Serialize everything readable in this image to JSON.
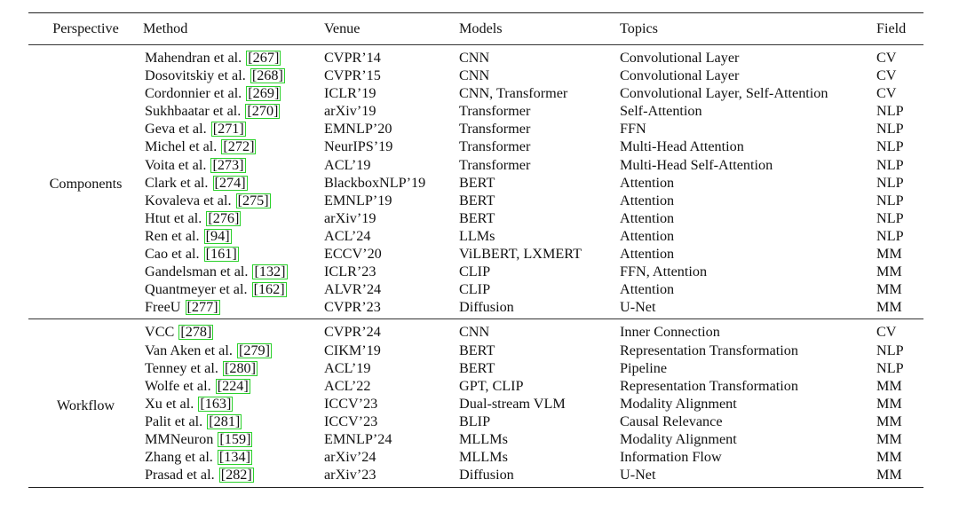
{
  "table": {
    "headers": {
      "perspective": "Perspective",
      "method": "Method",
      "venue": "Venue",
      "models": "Models",
      "topics": "Topics",
      "field": "Field"
    },
    "groups": [
      {
        "perspective": "Components",
        "rows": [
          {
            "method": "Mahendran et al.",
            "ref": "267",
            "venue": "CVPR’14",
            "models": "CNN",
            "topics": "Convolutional Layer",
            "field": "CV"
          },
          {
            "method": "Dosovitskiy et al.",
            "ref": "268",
            "venue": "CVPR’15",
            "models": "CNN",
            "topics": "Convolutional Layer",
            "field": "CV"
          },
          {
            "method": "Cordonnier et al.",
            "ref": "269",
            "venue": "ICLR’19",
            "models": "CNN, Transformer",
            "topics": "Convolutional Layer, Self-Attention",
            "field": "CV"
          },
          {
            "method": "Sukhbaatar et al.",
            "ref": "270",
            "venue": "arXiv’19",
            "models": "Transformer",
            "topics": "Self-Attention",
            "field": "NLP"
          },
          {
            "method": "Geva et al.",
            "ref": "271",
            "venue": "EMNLP’20",
            "models": "Transformer",
            "topics": "FFN",
            "field": "NLP"
          },
          {
            "method": "Michel et al.",
            "ref": "272",
            "venue": "NeurIPS’19",
            "models": "Transformer",
            "topics": "Multi-Head Attention",
            "field": "NLP"
          },
          {
            "method": "Voita et al.",
            "ref": "273",
            "venue": "ACL’19",
            "models": "Transformer",
            "topics": "Multi-Head Self-Attention",
            "field": "NLP"
          },
          {
            "method": "Clark et al.",
            "ref": "274",
            "venue": "BlackboxNLP’19",
            "models": "BERT",
            "topics": "Attention",
            "field": "NLP"
          },
          {
            "method": "Kovaleva et al.",
            "ref": "275",
            "venue": "EMNLP’19",
            "models": "BERT",
            "topics": "Attention",
            "field": "NLP"
          },
          {
            "method": "Htut et al.",
            "ref": "276",
            "venue": "arXiv’19",
            "models": "BERT",
            "topics": "Attention",
            "field": "NLP"
          },
          {
            "method": "Ren et al.",
            "ref": "94",
            "venue": "ACL’24",
            "models": "LLMs",
            "topics": "Attention",
            "field": "NLP"
          },
          {
            "method": "Cao et al.",
            "ref": "161",
            "venue": "ECCV’20",
            "models": "ViLBERT, LXMERT",
            "topics": "Attention",
            "field": "MM"
          },
          {
            "method": "Gandelsman et al.",
            "ref": "132",
            "venue": "ICLR’23",
            "models": "CLIP",
            "topics": "FFN, Attention",
            "field": "MM"
          },
          {
            "method": "Quantmeyer et al.",
            "ref": "162",
            "venue": "ALVR’24",
            "models": "CLIP",
            "topics": "Attention",
            "field": "MM"
          },
          {
            "method": "FreeU",
            "ref": "277",
            "venue": "CVPR’23",
            "models": "Diffusion",
            "topics": "U-Net",
            "field": "MM"
          }
        ]
      },
      {
        "perspective": "Workflow",
        "rows": [
          {
            "method": "VCC",
            "ref": "278",
            "venue": "CVPR’24",
            "models": "CNN",
            "topics": "Inner Connection",
            "field": "CV"
          },
          {
            "method": "Van Aken et al.",
            "ref": "279",
            "venue": "CIKM’19",
            "models": "BERT",
            "topics": "Representation Transformation",
            "field": "NLP"
          },
          {
            "method": "Tenney et al.",
            "ref": "280",
            "venue": "ACL’19",
            "models": "BERT",
            "topics": "Pipeline",
            "field": "NLP"
          },
          {
            "method": "Wolfe et al.",
            "ref": "224",
            "venue": "ACL’22",
            "models": "GPT, CLIP",
            "topics": "Representation Transformation",
            "field": "MM"
          },
          {
            "method": "Xu et al.",
            "ref": "163",
            "venue": "ICCV’23",
            "models": "Dual-stream VLM",
            "topics": "Modality Alignment",
            "field": "MM"
          },
          {
            "method": "Palit et al.",
            "ref": "281",
            "venue": "ICCV’23",
            "models": "BLIP",
            "topics": "Causal Relevance",
            "field": "MM"
          },
          {
            "method": "MMNeuron",
            "ref": "159",
            "venue": "EMNLP’24",
            "models": "MLLMs",
            "topics": "Modality Alignment",
            "field": "MM"
          },
          {
            "method": "Zhang et al.",
            "ref": "134",
            "venue": "arXiv’24",
            "models": "MLLMs",
            "topics": "Information Flow",
            "field": "MM"
          },
          {
            "method": "Prasad et al.",
            "ref": "282",
            "venue": "arXiv’23",
            "models": "Diffusion",
            "topics": "U-Net",
            "field": "MM"
          }
        ]
      }
    ]
  }
}
